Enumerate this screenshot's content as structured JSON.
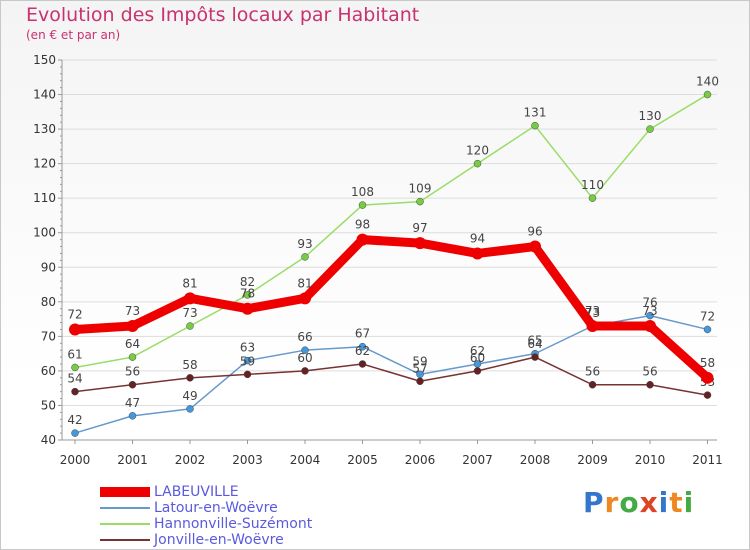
{
  "header": {
    "title": "Evolution des Impôts locaux par Habitant",
    "subtitle": "(en € et par an)"
  },
  "logo": {
    "text": "Proxiti",
    "letters": [
      "P",
      "r",
      "o",
      "x",
      "i",
      "t",
      "i"
    ]
  },
  "chart_data": {
    "type": "line",
    "title": "Evolution des Impôts locaux par Habitant",
    "subtitle": "(en € et par an)",
    "xlabel": "",
    "ylabel": "",
    "x": [
      "2000",
      "2001",
      "2002",
      "2003",
      "2004",
      "2005",
      "2006",
      "2007",
      "2008",
      "2009",
      "2010",
      "2011"
    ],
    "ylim": [
      40,
      150
    ],
    "yticks": [
      40,
      50,
      60,
      70,
      80,
      90,
      100,
      110,
      120,
      130,
      140,
      150
    ],
    "legend_position": "bottom-left",
    "series": [
      {
        "name": "Hannonville-Suzémont",
        "color": "#99dd66",
        "marker": "#77cc44",
        "values": [
          61,
          64,
          73,
          82,
          93,
          108,
          109,
          120,
          131,
          110,
          130,
          140
        ],
        "labels": [
          "61",
          "64",
          "73",
          "82",
          "93",
          "108",
          "109",
          "120",
          "131",
          "110",
          "130",
          "140"
        ]
      },
      {
        "name": "Latour-en-Woëvre",
        "color": "#6699cc",
        "marker": "#4499dd",
        "values": [
          42,
          47,
          49,
          63,
          66,
          67,
          59,
          62,
          65,
          73,
          76,
          72
        ],
        "labels": [
          "42",
          "47",
          "49",
          "63",
          "66",
          "67",
          "59",
          "62",
          "65",
          "73",
          "76",
          "72"
        ]
      },
      {
        "name": "Jonville-en-Woëvre",
        "color": "#773333",
        "marker": "#662222",
        "values": [
          54,
          56,
          58,
          59,
          60,
          62,
          57,
          60,
          64,
          56,
          56,
          53
        ],
        "labels": [
          "54",
          "56",
          "58",
          "59",
          "60",
          "62",
          "57",
          "60",
          "64",
          "56",
          "56",
          "53"
        ]
      },
      {
        "name": "LABEUVILLE",
        "color": "#ee0000",
        "marker": "#ee0000",
        "values": [
          72,
          73,
          81,
          78,
          81,
          98,
          97,
          94,
          96,
          73,
          73,
          58
        ],
        "labels": [
          "72",
          "73",
          "81",
          "78",
          "81",
          "98",
          "97",
          "94",
          "96",
          "73",
          "73",
          "58"
        ]
      }
    ]
  },
  "legend": [
    {
      "label": "LABEUVILLE",
      "color": "#ee0000",
      "thick": true
    },
    {
      "label": "Latour-en-Woëvre",
      "color": "#6699cc",
      "thick": false
    },
    {
      "label": "Hannonville-Suzémont",
      "color": "#99dd66",
      "thick": false
    },
    {
      "label": "Jonville-en-Woëvre",
      "color": "#773333",
      "thick": false
    }
  ]
}
